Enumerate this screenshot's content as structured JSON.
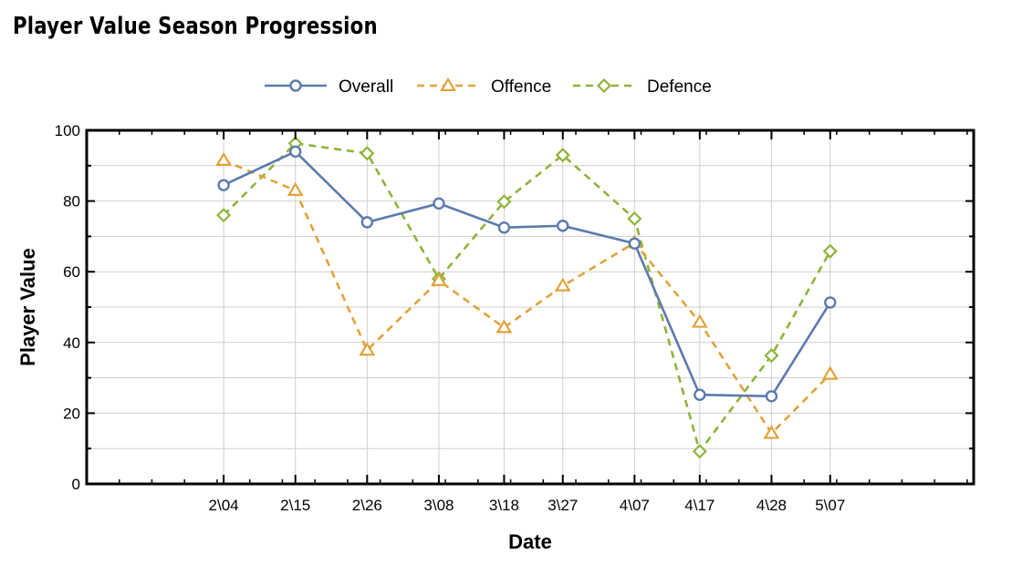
{
  "chart_data": {
    "type": "line",
    "title": "Player Value Season Progression",
    "xlabel": "Date",
    "ylabel": "Player Value",
    "ylim": [
      0,
      100
    ],
    "yticks": [
      0,
      20,
      40,
      60,
      80,
      100
    ],
    "categories": [
      "2\\04",
      "2\\15",
      "2\\26",
      "3\\08",
      "3\\18",
      "3\\27",
      "4\\07",
      "4\\17",
      "4\\28",
      "5\\07"
    ],
    "x_dates": [
      "2024-02-04",
      "2024-02-15",
      "2024-02-26",
      "2024-03-08",
      "2024-03-18",
      "2024-03-27",
      "2024-04-07",
      "2024-04-17",
      "2024-04-28",
      "2024-05-07"
    ],
    "x_range": [
      "2024-01-14",
      "2024-05-29"
    ],
    "grid": true,
    "legend_position": "top-center",
    "series": [
      {
        "name": "Overall",
        "color": "#5b7bad",
        "dash": "solid",
        "marker": "circle",
        "values": [
          84.5,
          94,
          74,
          79.3,
          72.5,
          73,
          68,
          25.2,
          24.8,
          51.3
        ]
      },
      {
        "name": "Offence",
        "color": "#e2a23a",
        "dash": "dashed",
        "marker": "triangle",
        "values": [
          91.5,
          83,
          37.8,
          57.5,
          44.2,
          56,
          68.2,
          45.7,
          14.3,
          31
        ]
      },
      {
        "name": "Defence",
        "color": "#8fb43a",
        "dash": "dashed",
        "marker": "diamond",
        "values": [
          76,
          96.3,
          93.5,
          58,
          79.8,
          93,
          75,
          9.2,
          36.3,
          65.8
        ]
      }
    ]
  }
}
